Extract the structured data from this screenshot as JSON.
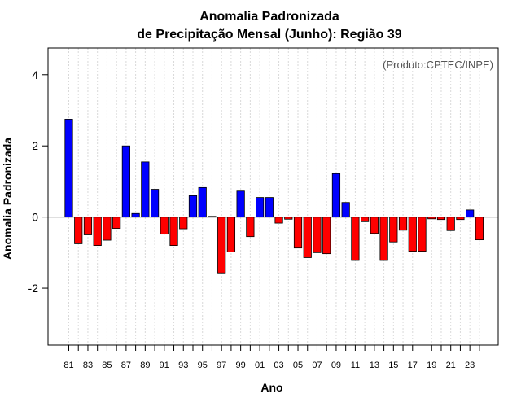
{
  "chart_data": {
    "type": "bar",
    "title_line1": "Anomalia Padronizada",
    "title_line2": "de Precipitação Mensal (Junho): Região 39",
    "xlabel": "Ano",
    "ylabel": "Anomalia Padronizada",
    "annotation": "(Produto:CPTEC/INPE)",
    "ylim": [
      -3.6,
      4.75
    ],
    "yticks": [
      -2,
      0,
      2,
      4
    ],
    "ytick_labels": [
      "-2",
      "0",
      "2",
      "4"
    ],
    "grid": true,
    "categories": [
      "1981",
      "1982",
      "1983",
      "1984",
      "1985",
      "1986",
      "1987",
      "1988",
      "1989",
      "1990",
      "1991",
      "1992",
      "1993",
      "1994",
      "1995",
      "1996",
      "1997",
      "1998",
      "1999",
      "2000",
      "2001",
      "2002",
      "2003",
      "2004",
      "2005",
      "2006",
      "2007",
      "2008",
      "2009",
      "2010",
      "2011",
      "2012",
      "2013",
      "2014",
      "2015",
      "2016",
      "2017",
      "2018",
      "2019",
      "2020",
      "2021",
      "2022",
      "2023",
      "2024"
    ],
    "xtick_labels": [
      "81",
      "83",
      "85",
      "87",
      "89",
      "91",
      "93",
      "95",
      "97",
      "99",
      "01",
      "03",
      "05",
      "07",
      "09",
      "11",
      "13",
      "15",
      "17",
      "19",
      "21",
      "23"
    ],
    "values": [
      2.75,
      -0.75,
      -0.5,
      -0.8,
      -0.65,
      -0.32,
      2.0,
      0.1,
      1.55,
      0.78,
      -0.48,
      -0.8,
      -0.33,
      0.6,
      0.83,
      0.02,
      -1.57,
      -0.98,
      0.73,
      -0.55,
      0.55,
      0.55,
      -0.17,
      -0.06,
      -0.87,
      -1.14,
      -1.0,
      -1.03,
      1.22,
      0.41,
      -1.22,
      -0.13,
      -0.46,
      -1.22,
      -0.7,
      -0.37,
      -0.96,
      -0.96,
      -0.05,
      -0.07,
      -0.38,
      -0.07,
      0.2,
      -0.64
    ],
    "positive_color": "#0000ff",
    "negative_color": "#ff0000"
  }
}
